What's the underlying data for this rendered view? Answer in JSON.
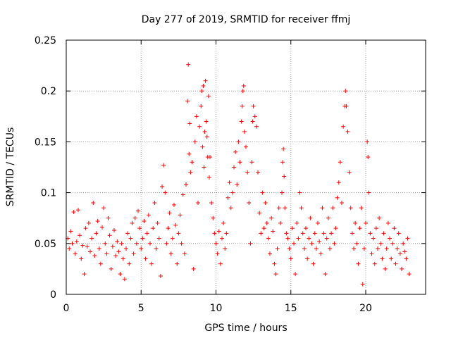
{
  "chart_data": {
    "type": "scatter",
    "title": "Day 277 of 2019, SRMTID for receiver ffmj",
    "xlabel": "GPS time / hours",
    "ylabel": "SRMTID / TECUs",
    "xlim": [
      0,
      24
    ],
    "ylim": [
      0,
      0.25
    ],
    "xticks": [
      0,
      5,
      10,
      15,
      20
    ],
    "xtick_labels": [
      "0",
      "5",
      "10",
      "15",
      "20"
    ],
    "yticks": [
      0,
      0.05,
      0.1,
      0.15,
      0.2,
      0.25
    ],
    "ytick_labels": [
      "0",
      "0.05",
      "0.1",
      "0.15",
      "0.2",
      "0.25"
    ],
    "grid": true,
    "marker": "+",
    "color": "#ff0000",
    "series": [
      {
        "name": "SRMTID",
        "points": [
          [
            0.1,
            0.055
          ],
          [
            0.2,
            0.045
          ],
          [
            0.3,
            0.062
          ],
          [
            0.4,
            0.05
          ],
          [
            0.5,
            0.081
          ],
          [
            0.6,
            0.04
          ],
          [
            0.7,
            0.052
          ],
          [
            0.8,
            0.083
          ],
          [
            0.9,
            0.058
          ],
          [
            1.0,
            0.035
          ],
          [
            1.1,
            0.048
          ],
          [
            1.2,
            0.02
          ],
          [
            1.3,
            0.065
          ],
          [
            1.4,
            0.047
          ],
          [
            1.5,
            0.07
          ],
          [
            1.6,
            0.042
          ],
          [
            1.7,
            0.055
          ],
          [
            1.8,
            0.09
          ],
          [
            1.9,
            0.038
          ],
          [
            2.0,
            0.06
          ],
          [
            2.1,
            0.072
          ],
          [
            2.2,
            0.045
          ],
          [
            2.3,
            0.03
          ],
          [
            2.4,
            0.066
          ],
          [
            2.5,
            0.085
          ],
          [
            2.6,
            0.05
          ],
          [
            2.7,
            0.04
          ],
          [
            2.8,
            0.075
          ],
          [
            2.9,
            0.058
          ],
          [
            3.0,
            0.025
          ],
          [
            3.1,
            0.047
          ],
          [
            3.2,
            0.063
          ],
          [
            3.3,
            0.038
          ],
          [
            3.4,
            0.052
          ],
          [
            3.5,
            0.042
          ],
          [
            3.6,
            0.02
          ],
          [
            3.7,
            0.05
          ],
          [
            3.8,
            0.035
          ],
          [
            3.9,
            0.015
          ],
          [
            4.0,
            0.045
          ],
          [
            4.1,
            0.06
          ],
          [
            4.2,
            0.03
          ],
          [
            4.3,
            0.055
          ],
          [
            4.4,
            0.07
          ],
          [
            4.5,
            0.04
          ],
          [
            4.6,
            0.075
          ],
          [
            4.7,
            0.05
          ],
          [
            4.8,
            0.082
          ],
          [
            4.9,
            0.065
          ],
          [
            5.0,
            0.045
          ],
          [
            5.1,
            0.055
          ],
          [
            5.2,
            0.072
          ],
          [
            5.3,
            0.035
          ],
          [
            5.4,
            0.06
          ],
          [
            5.5,
            0.078
          ],
          [
            5.6,
            0.05
          ],
          [
            5.7,
            0.03
          ],
          [
            5.8,
            0.065
          ],
          [
            5.9,
            0.09
          ],
          [
            6.0,
            0.045
          ],
          [
            6.1,
            0.07
          ],
          [
            6.2,
            0.055
          ],
          [
            6.3,
            0.018
          ],
          [
            6.4,
            0.106
          ],
          [
            6.5,
            0.127
          ],
          [
            6.6,
            0.1
          ],
          [
            6.7,
            0.05
          ],
          [
            6.8,
            0.065
          ],
          [
            6.9,
            0.08
          ],
          [
            7.0,
            0.04
          ],
          [
            7.1,
            0.055
          ],
          [
            7.2,
            0.088
          ],
          [
            7.3,
            0.068
          ],
          [
            7.4,
            0.03
          ],
          [
            7.5,
            0.06
          ],
          [
            7.6,
            0.078
          ],
          [
            7.7,
            0.05
          ],
          [
            7.8,
            0.098
          ],
          [
            7.9,
            0.04
          ],
          [
            8.0,
            0.108
          ],
          [
            8.1,
            0.19
          ],
          [
            8.15,
            0.226
          ],
          [
            8.2,
            0.138
          ],
          [
            8.25,
            0.168
          ],
          [
            8.3,
            0.12
          ],
          [
            8.4,
            0.13
          ],
          [
            8.5,
            0.025
          ],
          [
            8.6,
            0.15
          ],
          [
            8.7,
            0.175
          ],
          [
            8.8,
            0.09
          ],
          [
            8.9,
            0.165
          ],
          [
            9.0,
            0.185
          ],
          [
            9.05,
            0.2
          ],
          [
            9.1,
            0.145
          ],
          [
            9.15,
            0.205
          ],
          [
            9.2,
            0.125
          ],
          [
            9.25,
            0.16
          ],
          [
            9.3,
            0.21
          ],
          [
            9.35,
            0.17
          ],
          [
            9.4,
            0.155
          ],
          [
            9.45,
            0.135
          ],
          [
            9.5,
            0.195
          ],
          [
            9.55,
            0.115
          ],
          [
            9.6,
            0.135
          ],
          [
            9.7,
            0.09
          ],
          [
            9.8,
            0.075
          ],
          [
            9.9,
            0.06
          ],
          [
            10.0,
            0.05
          ],
          [
            10.1,
            0.04
          ],
          [
            10.2,
            0.062
          ],
          [
            10.3,
            0.03
          ],
          [
            10.4,
            0.055
          ],
          [
            10.5,
            0.07
          ],
          [
            10.6,
            0.045
          ],
          [
            10.7,
            0.06
          ],
          [
            10.8,
            0.095
          ],
          [
            10.9,
            0.11
          ],
          [
            11.0,
            0.085
          ],
          [
            11.1,
            0.1
          ],
          [
            11.2,
            0.125
          ],
          [
            11.3,
            0.14
          ],
          [
            11.4,
            0.108
          ],
          [
            11.5,
            0.15
          ],
          [
            11.6,
            0.13
          ],
          [
            11.7,
            0.17
          ],
          [
            11.75,
            0.185
          ],
          [
            11.8,
            0.2
          ],
          [
            11.85,
            0.205
          ],
          [
            11.9,
            0.16
          ],
          [
            12.0,
            0.145
          ],
          [
            12.1,
            0.12
          ],
          [
            12.2,
            0.09
          ],
          [
            12.3,
            0.05
          ],
          [
            12.4,
            0.13
          ],
          [
            12.45,
            0.17
          ],
          [
            12.5,
            0.185
          ],
          [
            12.6,
            0.175
          ],
          [
            12.7,
            0.165
          ],
          [
            12.8,
            0.12
          ],
          [
            12.9,
            0.08
          ],
          [
            13.0,
            0.06
          ],
          [
            13.1,
            0.1
          ],
          [
            13.2,
            0.065
          ],
          [
            13.3,
            0.09
          ],
          [
            13.4,
            0.07
          ],
          [
            13.5,
            0.055
          ],
          [
            13.6,
            0.04
          ],
          [
            13.7,
            0.075
          ],
          [
            13.8,
            0.062
          ],
          [
            13.9,
            0.03
          ],
          [
            14.0,
            0.02
          ],
          [
            14.1,
            0.045
          ],
          [
            14.2,
            0.085
          ],
          [
            14.3,
            0.07
          ],
          [
            14.4,
            0.1
          ],
          [
            14.45,
            0.13
          ],
          [
            14.5,
            0.143
          ],
          [
            14.55,
            0.116
          ],
          [
            14.6,
            0.085
          ],
          [
            14.7,
            0.06
          ],
          [
            14.8,
            0.055
          ],
          [
            14.9,
            0.045
          ],
          [
            15.0,
            0.035
          ],
          [
            15.1,
            0.065
          ],
          [
            15.2,
            0.05
          ],
          [
            15.3,
            0.02
          ],
          [
            15.4,
            0.07
          ],
          [
            15.5,
            0.055
          ],
          [
            15.6,
            0.1
          ],
          [
            15.7,
            0.085
          ],
          [
            15.8,
            0.06
          ],
          [
            15.9,
            0.045
          ],
          [
            16.0,
            0.065
          ],
          [
            16.1,
            0.035
          ],
          [
            16.2,
            0.055
          ],
          [
            16.3,
            0.075
          ],
          [
            16.4,
            0.05
          ],
          [
            16.5,
            0.03
          ],
          [
            16.6,
            0.06
          ],
          [
            16.7,
            0.045
          ],
          [
            16.8,
            0.07
          ],
          [
            16.9,
            0.052
          ],
          [
            17.0,
            0.04
          ],
          [
            17.1,
            0.085
          ],
          [
            17.2,
            0.06
          ],
          [
            17.3,
            0.02
          ],
          [
            17.4,
            0.055
          ],
          [
            17.5,
            0.075
          ],
          [
            17.6,
            0.045
          ],
          [
            17.7,
            0.06
          ],
          [
            17.8,
            0.085
          ],
          [
            17.9,
            0.05
          ],
          [
            18.0,
            0.065
          ],
          [
            18.1,
            0.095
          ],
          [
            18.2,
            0.11
          ],
          [
            18.3,
            0.13
          ],
          [
            18.4,
            0.09
          ],
          [
            18.5,
            0.165
          ],
          [
            18.6,
            0.185
          ],
          [
            18.65,
            0.2
          ],
          [
            18.7,
            0.185
          ],
          [
            18.8,
            0.16
          ],
          [
            18.9,
            0.12
          ],
          [
            19.0,
            0.085
          ],
          [
            19.1,
            0.06
          ],
          [
            19.2,
            0.045
          ],
          [
            19.3,
            0.07
          ],
          [
            19.4,
            0.05
          ],
          [
            19.5,
            0.03
          ],
          [
            19.6,
            0.065
          ],
          [
            19.7,
            0.085
          ],
          [
            19.8,
            0.01
          ],
          [
            19.9,
            0.045
          ],
          [
            20.0,
            0.07
          ],
          [
            20.1,
            0.15
          ],
          [
            20.15,
            0.135
          ],
          [
            20.2,
            0.1
          ],
          [
            20.3,
            0.06
          ],
          [
            20.4,
            0.04
          ],
          [
            20.5,
            0.055
          ],
          [
            20.6,
            0.03
          ],
          [
            20.7,
            0.065
          ],
          [
            20.8,
            0.045
          ],
          [
            20.9,
            0.075
          ],
          [
            21.0,
            0.05
          ],
          [
            21.1,
            0.035
          ],
          [
            21.2,
            0.06
          ],
          [
            21.3,
            0.025
          ],
          [
            21.4,
            0.045
          ],
          [
            21.5,
            0.07
          ],
          [
            21.6,
            0.055
          ],
          [
            21.7,
            0.035
          ],
          [
            21.8,
            0.05
          ],
          [
            21.9,
            0.065
          ],
          [
            22.0,
            0.03
          ],
          [
            22.1,
            0.045
          ],
          [
            22.2,
            0.06
          ],
          [
            22.3,
            0.04
          ],
          [
            22.4,
            0.025
          ],
          [
            22.5,
            0.05
          ],
          [
            22.6,
            0.042
          ],
          [
            22.7,
            0.035
          ],
          [
            22.8,
            0.055
          ],
          [
            22.9,
            0.02
          ]
        ]
      }
    ]
  }
}
